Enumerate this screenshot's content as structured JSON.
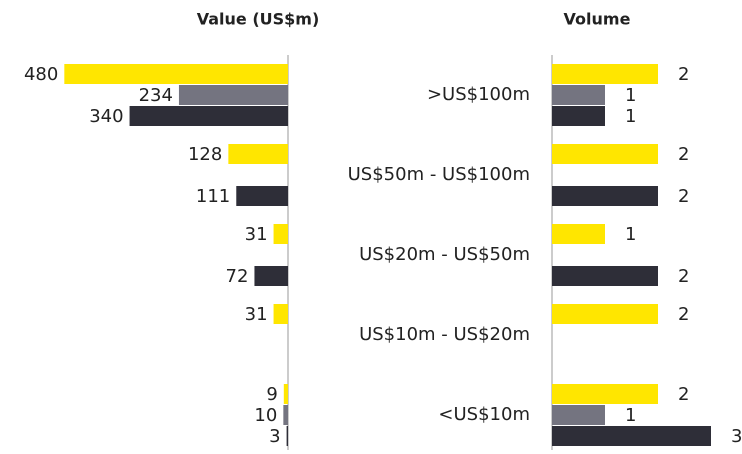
{
  "chart_data": [
    {
      "type": "bar",
      "title": "Value (US$m)",
      "orientation": "horizontal",
      "direction": "left",
      "xlim": [
        0,
        500
      ],
      "series": [
        {
          "color": "#ffe600",
          "values": [
            480,
            128,
            31,
            31,
            9
          ]
        },
        {
          "color": "#747480",
          "values": [
            234,
            null,
            null,
            null,
            10
          ]
        },
        {
          "color": "#2e2e38",
          "values": [
            340,
            111,
            72,
            null,
            3
          ]
        }
      ]
    },
    {
      "type": "bar",
      "title": "Volume",
      "orientation": "horizontal",
      "direction": "right",
      "xlim": [
        0,
        3.5
      ],
      "categories": [
        ">US$100m",
        "US$50m - US$100m",
        "US$20m - US$50m",
        "US$10m - US$20m",
        "<US$10m"
      ],
      "series": [
        {
          "color": "#ffe600",
          "values": [
            2,
            2,
            1,
            2,
            2
          ]
        },
        {
          "color": "#747480",
          "values": [
            1,
            null,
            null,
            null,
            1
          ]
        },
        {
          "color": "#2e2e38",
          "values": [
            1,
            2,
            2,
            null,
            3
          ]
        }
      ]
    }
  ]
}
